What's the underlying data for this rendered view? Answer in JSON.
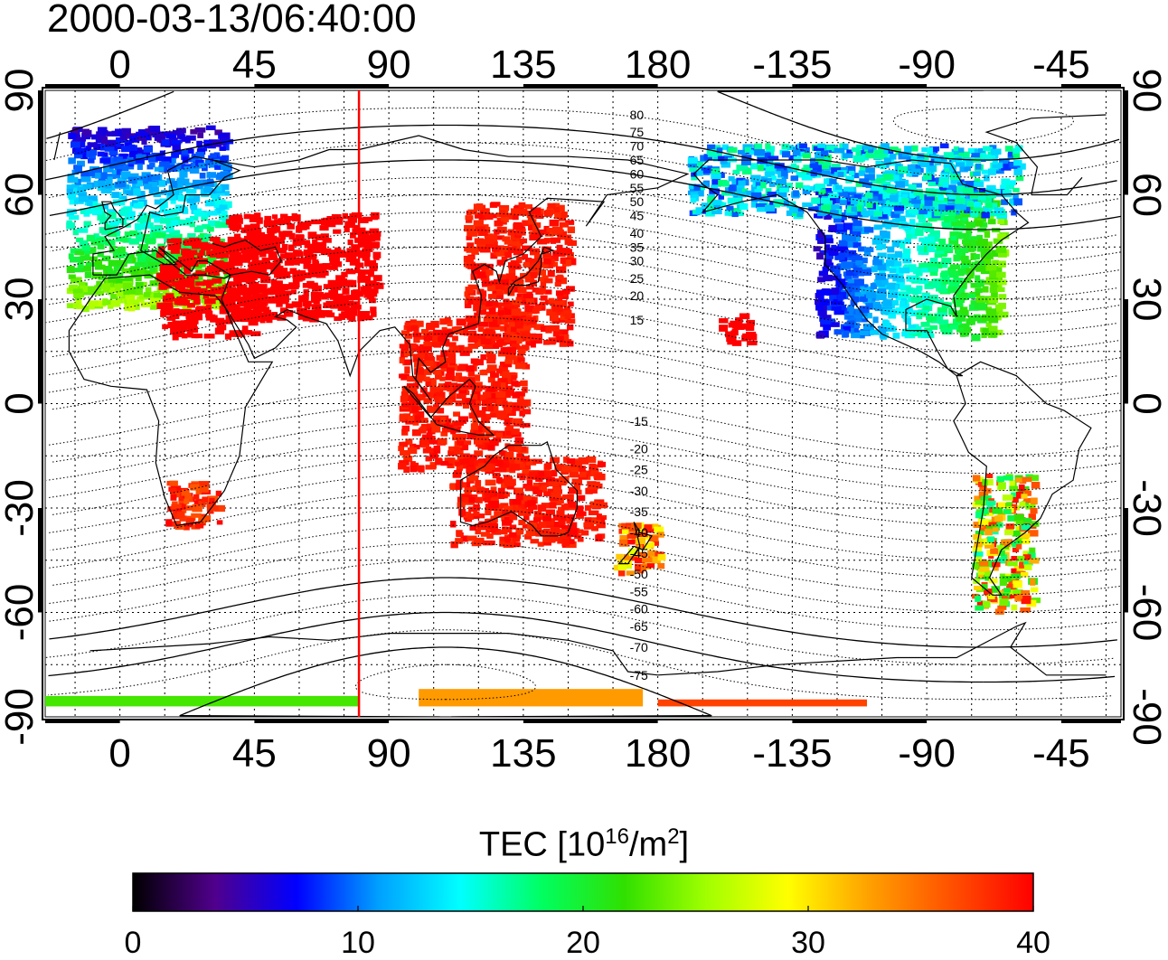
{
  "timestamp": "2000-03-13/06:40:00",
  "map": {
    "lon_ticks": [
      "0",
      "45",
      "90",
      "135",
      "180",
      "-135",
      "-90",
      "-45"
    ],
    "lon_values": [
      0,
      45,
      90,
      135,
      180,
      225,
      270,
      315
    ],
    "lat_ticks": [
      "90",
      "60",
      "30",
      "0",
      "-30",
      "-60",
      "-90"
    ],
    "lat_values": [
      90,
      60,
      30,
      0,
      -30,
      -60,
      -90
    ],
    "lon_range": [
      -25,
      335
    ],
    "lat_range": [
      -90,
      90
    ],
    "grid": "dotted-15deg",
    "subsolar_meridian_lon": 80,
    "magnetic_lat_labels": [
      "80",
      "75",
      "70",
      "65",
      "60",
      "55",
      "50",
      "45",
      "40",
      "35",
      "30",
      "25",
      "20",
      "15",
      "-15",
      "-20",
      "-25",
      "-30",
      "-35",
      "-40",
      "-45",
      "-50",
      "-55",
      "-60",
      "-65",
      "-70",
      "-75"
    ],
    "magnetic_lat_values": [
      80,
      75,
      70,
      65,
      60,
      55,
      50,
      45,
      40,
      35,
      30,
      25,
      20,
      15,
      -15,
      -20,
      -25,
      -30,
      -35,
      -40,
      -45,
      -50,
      -55,
      -60,
      -65,
      -70,
      -75
    ],
    "magnetic_label_lat_positions": [
      83,
      78,
      74,
      70,
      66,
      62,
      58,
      54,
      49,
      45,
      41,
      36,
      31,
      24,
      -5,
      -13,
      -19,
      -25,
      -31,
      -37,
      -43,
      -49,
      -54,
      -59,
      -64,
      -70,
      -78
    ]
  },
  "colorbar": {
    "title": "TEC  [10",
    "title_sup": "16",
    "title_mid": "/m",
    "title_sup2": "2",
    "title_end": "]",
    "tick_labels": [
      "0",
      "10",
      "20",
      "30",
      "40"
    ],
    "tick_values": [
      0,
      10,
      20,
      30,
      40
    ],
    "range": [
      0,
      40
    ],
    "colors": [
      "#000000",
      "#50008c",
      "#0000ff",
      "#00a0ff",
      "#00ffff",
      "#00ff60",
      "#30e000",
      "#a0ff00",
      "#ffff00",
      "#ffa000",
      "#ff5000",
      "#ff0000"
    ]
  },
  "tec_regions": [
    {
      "name": "europe",
      "lon": [
        -18,
        35
      ],
      "lat": [
        28,
        80
      ],
      "tec": [
        5,
        26
      ],
      "gradient": "north-low"
    },
    {
      "name": "mediterranean-red",
      "lon": [
        12,
        45
      ],
      "lat": [
        20,
        48
      ],
      "tec": [
        40,
        40
      ]
    },
    {
      "name": "middle-east-red",
      "lon": [
        35,
        85
      ],
      "lat": [
        25,
        55
      ],
      "tec": [
        40,
        40
      ]
    },
    {
      "name": "east-asia-red",
      "lon": [
        115,
        150
      ],
      "lat": [
        18,
        58
      ],
      "tec": [
        38,
        40
      ]
    },
    {
      "name": "southeast-asia-red",
      "lon": [
        93,
        135
      ],
      "lat": [
        -18,
        25
      ],
      "tec": [
        38,
        40
      ]
    },
    {
      "name": "australia-red",
      "lon": [
        110,
        160
      ],
      "lat": [
        -40,
        -15
      ],
      "tec": [
        38,
        40
      ]
    },
    {
      "name": "new-zealand",
      "lon": [
        165,
        180
      ],
      "lat": [
        -48,
        -34
      ],
      "tec": [
        27,
        40
      ]
    },
    {
      "name": "south-africa",
      "lon": [
        15,
        33
      ],
      "lat": [
        -35,
        -22
      ],
      "tec": [
        36,
        40
      ]
    },
    {
      "name": "north-america",
      "lon": [
        -128,
        -65
      ],
      "lat": [
        20,
        62
      ],
      "tec": [
        6,
        24
      ],
      "gradient": "west-low"
    },
    {
      "name": "alaska-canada",
      "lon": [
        -170,
        -60
      ],
      "lat": [
        55,
        75
      ],
      "tec": [
        8,
        18
      ]
    },
    {
      "name": "south-america",
      "lon": [
        -75,
        -55
      ],
      "lat": [
        -60,
        -20
      ],
      "tec": [
        16,
        40
      ]
    },
    {
      "name": "hawaii-red",
      "lon": [
        -160,
        -150
      ],
      "lat": [
        18,
        26
      ],
      "tec": [
        40,
        40
      ]
    },
    {
      "name": "antarctic-band",
      "lon": [
        100,
        175
      ],
      "lat": [
        -87,
        -82
      ],
      "tec": [
        30,
        36
      ]
    },
    {
      "name": "antarctic-band-2",
      "lon": [
        180,
        250
      ],
      "lat": [
        -87,
        -85
      ],
      "tec": [
        36,
        38
      ]
    },
    {
      "name": "antarctic-green",
      "lon": [
        -25,
        80
      ],
      "lat": [
        -87,
        -84
      ],
      "tec": [
        22,
        23
      ]
    }
  ]
}
